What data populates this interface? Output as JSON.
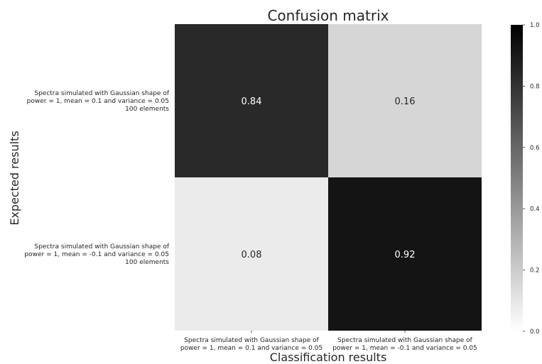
{
  "chart_data": {
    "type": "heatmap",
    "title": "Confusion matrix",
    "xlabel": "Classification results",
    "ylabel": "Expected results",
    "x_categories": [
      [
        "Spectra simulated with Gaussian shape of",
        "power = 1, mean = 0.1 and variance = 0.05"
      ],
      [
        "Spectra simulated with Gaussian shape of",
        "power = 1, mean = -0.1 and variance = 0.05"
      ]
    ],
    "y_categories": [
      [
        "Spectra simulated with Gaussian shape of",
        "power = 1, mean = 0.1 and variance = 0.05",
        "100 elements"
      ],
      [
        "Spectra simulated with Gaussian shape of",
        "power = 1, mean = -0.1 and variance = 0.05",
        "100 elements"
      ]
    ],
    "values": [
      [
        0.84,
        0.16
      ],
      [
        0.08,
        0.92
      ]
    ],
    "value_labels": [
      [
        "0.84",
        "0.16"
      ],
      [
        "0.08",
        "0.92"
      ]
    ],
    "colormap": "Greys",
    "colorbar": {
      "range": [
        0.0,
        1.0
      ],
      "ticks": [
        "0.0",
        "0.2",
        "0.4",
        "0.6",
        "0.8",
        "1.0"
      ]
    }
  }
}
